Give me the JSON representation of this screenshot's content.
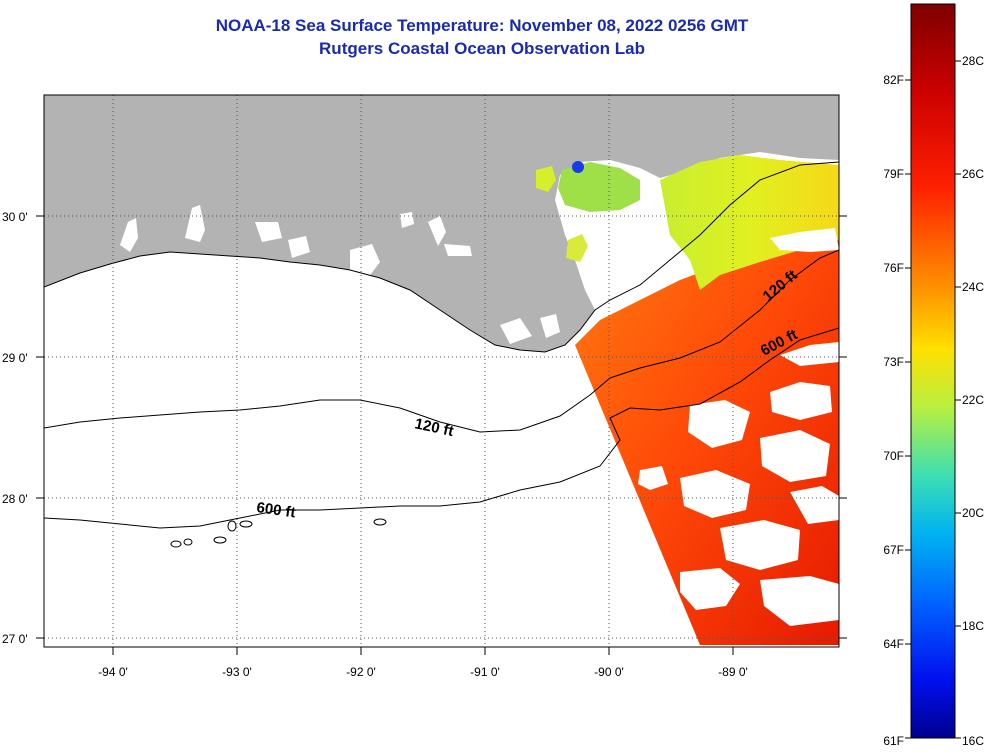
{
  "title": {
    "line1": "NOAA-18 Sea Surface Temperature:  November 08, 2022 0256 GMT",
    "line2": "Rutgers Coastal Ocean Observation Lab"
  },
  "map": {
    "lat_labels": [
      "30 0'",
      "29 0'",
      "28 0'",
      "27 0'"
    ],
    "lon_labels": [
      "-94 0'",
      "-93 0'",
      "-92 0'",
      "-91 0'",
      "-90 0'",
      "-89 0'"
    ],
    "contours": [
      "120 ft",
      "600 ft",
      "120 ft",
      "600 ft"
    ]
  },
  "colorbar": {
    "fahrenheit": [
      "82F",
      "79F",
      "76F",
      "73F",
      "70F",
      "67F",
      "64F",
      "61F"
    ],
    "celsius": [
      "28C",
      "26C",
      "24C",
      "22C",
      "20C",
      "18C",
      "16C"
    ]
  },
  "colors": {
    "title": "#1a2bb0",
    "land": "#b3b3b3",
    "ocean": "#ffffff"
  }
}
